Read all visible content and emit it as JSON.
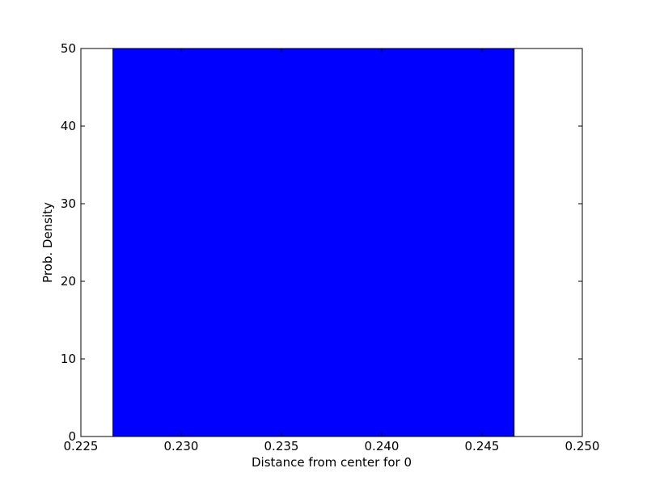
{
  "chart_data": {
    "type": "bar",
    "title": "",
    "xlabel": "Distance from center for 0",
    "ylabel": "Prob. Density",
    "xlim": [
      0.225,
      0.25
    ],
    "ylim": [
      0,
      50
    ],
    "x_ticks": [
      "0.225",
      "0.230",
      "0.235",
      "0.240",
      "0.245",
      "0.250"
    ],
    "x_tick_values": [
      0.225,
      0.23,
      0.235,
      0.24,
      0.245,
      0.25
    ],
    "y_ticks": [
      "0",
      "10",
      "20",
      "30",
      "40",
      "50"
    ],
    "y_tick_values": [
      0,
      10,
      20,
      30,
      40,
      50
    ],
    "bins": [
      {
        "x_start": 0.2266,
        "x_end": 0.2466,
        "value": 50
      }
    ],
    "bar_color": "#0000ff",
    "edge_color": "#000000",
    "grid": false,
    "legend": "none"
  }
}
